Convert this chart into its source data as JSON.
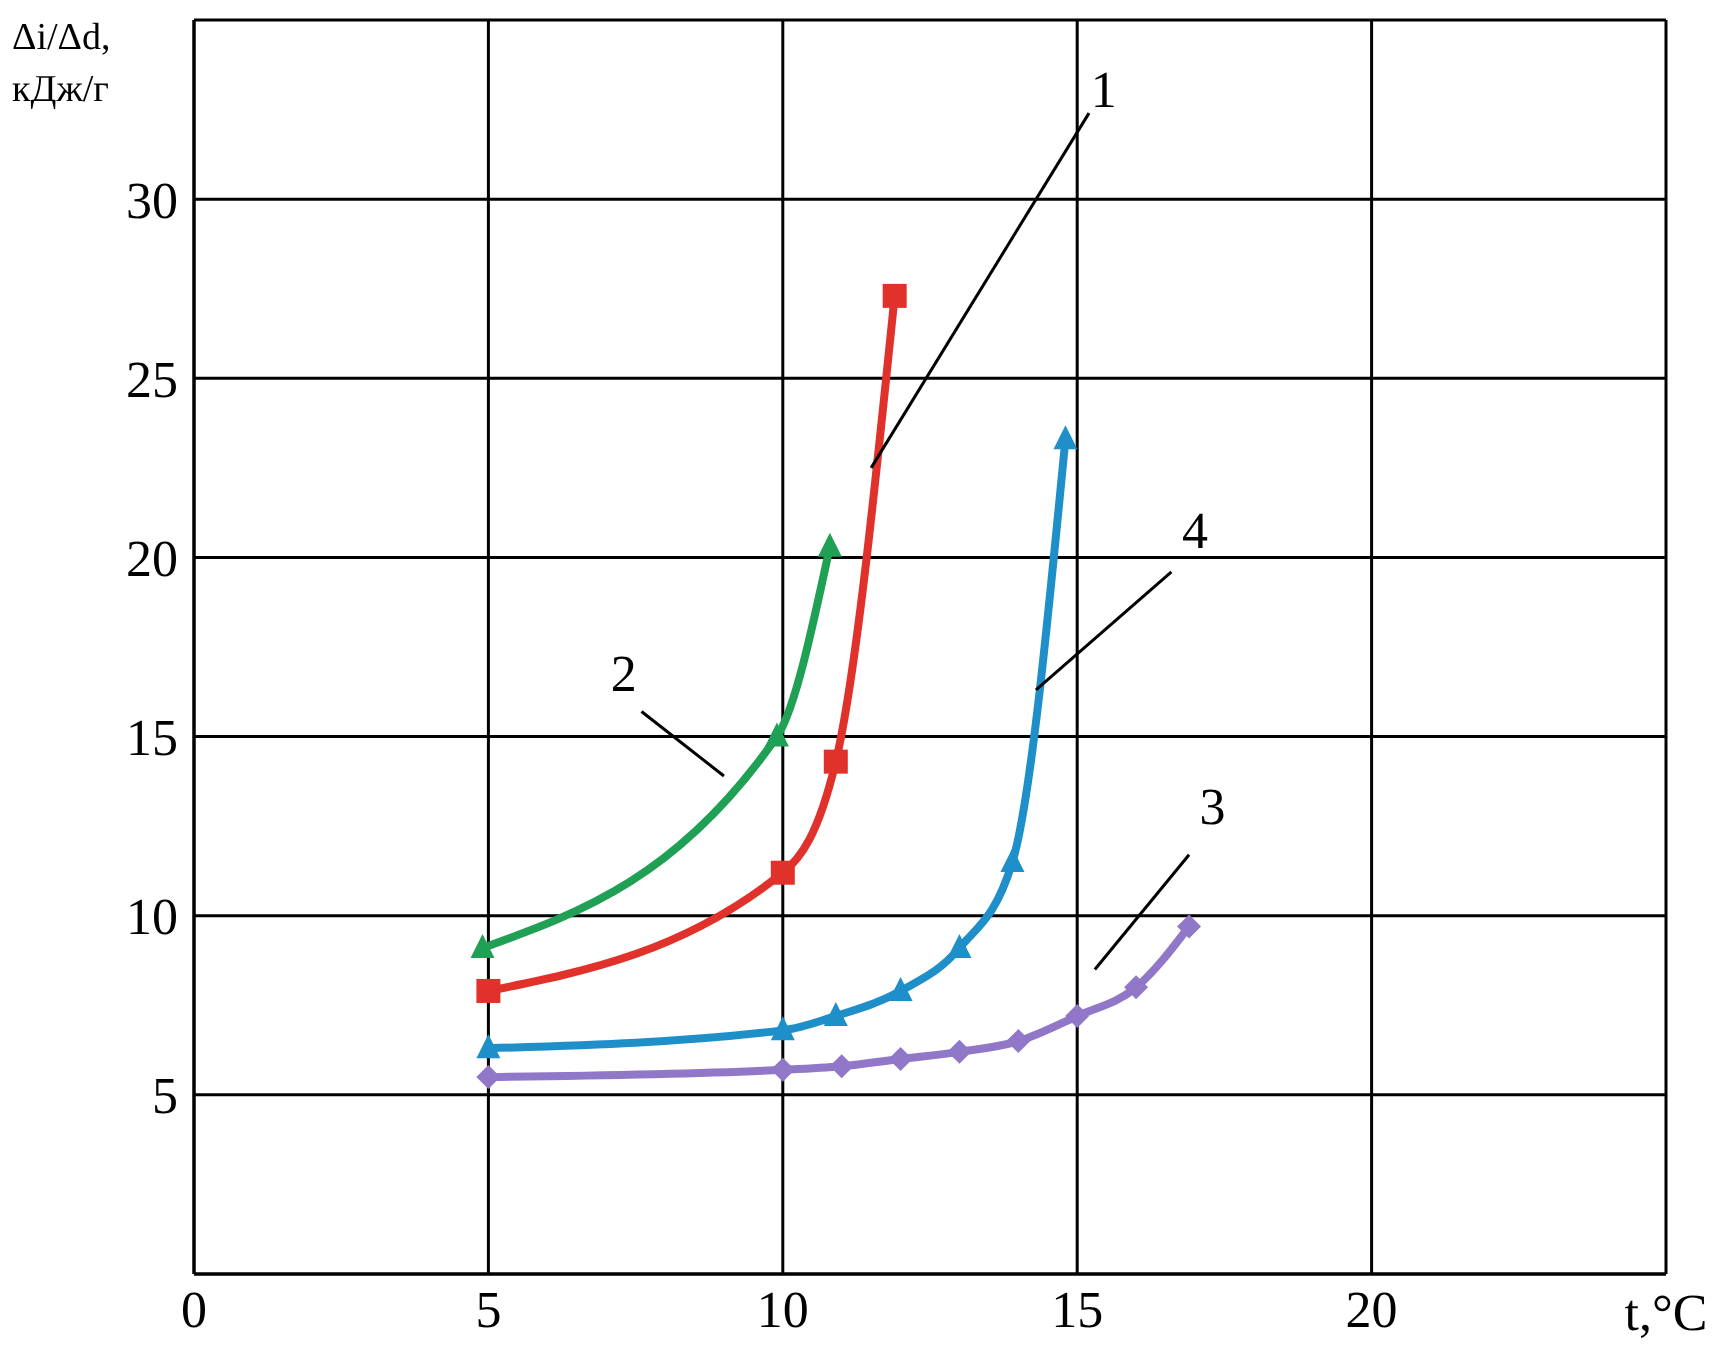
{
  "chart_data": {
    "type": "line",
    "ylabel": "Δi/Δd,\nкДж/г",
    "xlabel": "t,°C",
    "xlim": [
      0,
      25
    ],
    "ylim": [
      0,
      35
    ],
    "xticks": [
      0,
      5,
      10,
      15,
      20,
      {
        "value": 25,
        "label": null
      }
    ],
    "yticks": [
      {
        "value": 0,
        "label": null
      },
      5,
      10,
      15,
      20,
      25,
      30,
      {
        "value": 35,
        "label": null
      }
    ],
    "grid": true,
    "series": [
      {
        "name": "1",
        "color": "#e0322a",
        "marker": "square",
        "x": [
          5,
          10,
          10.9,
          11.9
        ],
        "values": [
          7.9,
          11.2,
          14.3,
          27.3
        ]
      },
      {
        "name": "2",
        "color": "#1fa055",
        "marker": "triangle",
        "x": [
          4.9,
          9.9,
          10.8
        ],
        "values": [
          9.1,
          15.0,
          20.3
        ]
      },
      {
        "name": "3",
        "color": "#9077c8",
        "marker": "diamond",
        "x": [
          5,
          10,
          11,
          12,
          13,
          14,
          15,
          16,
          16.9
        ],
        "values": [
          5.5,
          5.7,
          5.8,
          6.0,
          6.2,
          6.5,
          7.2,
          8.0,
          9.7
        ]
      },
      {
        "name": "4",
        "color": "#1e8fc8",
        "marker": "triangle",
        "x": [
          5,
          10,
          10.9,
          12,
          13,
          13.9,
          14.8
        ],
        "values": [
          6.3,
          6.8,
          7.2,
          7.9,
          9.1,
          11.5,
          23.3
        ]
      }
    ]
  }
}
